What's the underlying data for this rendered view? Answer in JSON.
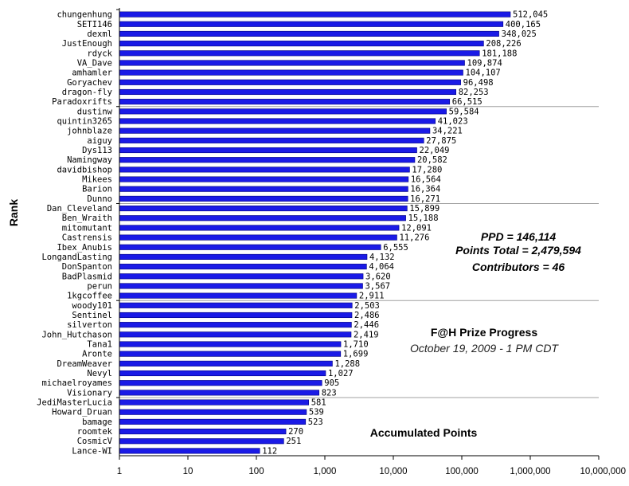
{
  "chart_data": {
    "type": "bar",
    "orientation": "horizontal",
    "x_scale": "log",
    "xlim": [
      1,
      10000000
    ],
    "x_ticks": [
      "1",
      "10",
      "100",
      "1,000",
      "10,000",
      "100,000",
      "1,000,000",
      "10,000,000"
    ],
    "ylabel": "Rank",
    "xlabel": "",
    "bar_color": "#1a1ae6",
    "bar_edge_color": "#000080",
    "group_size": 10,
    "categories": [
      "chungenhung",
      "SETI146",
      "dexml",
      "JustEnough",
      "rdyck",
      "VA_Dave",
      "amhamler",
      "Goryachev",
      "dragon-fly",
      "Paradoxrifts",
      "dustinw",
      "quintin3265",
      "johnblaze",
      "aiguy",
      "Dys113",
      "Namingway",
      "davidbishop",
      "Mikees",
      "Barion",
      "Dunno",
      "Dan_Cleveland",
      "Ben_Wraith",
      "mitomutant",
      "Castrensis",
      "Ibex_Anubis",
      "LongandLasting",
      "DonSpanton",
      "BadPlasmid",
      "perun",
      "1kgcoffee",
      "woody101",
      "Sentinel",
      "silverton",
      "John_Hutchason",
      "Tana1",
      "Aronte",
      "DreamWeaver",
      "Nevyl",
      "michaelroyames",
      "Visionary",
      "JediMasterLucia",
      "Howard_Druan",
      "bamage",
      "roomtek",
      "CosmicV",
      "Lance-WI"
    ],
    "values": [
      512045,
      400165,
      348025,
      208226,
      181188,
      109874,
      104107,
      96498,
      82253,
      66515,
      59584,
      41023,
      34221,
      27875,
      22049,
      20582,
      17280,
      16564,
      16364,
      16271,
      15899,
      15188,
      12091,
      11276,
      6555,
      4132,
      4064,
      3620,
      3567,
      2911,
      2503,
      2486,
      2446,
      2419,
      1710,
      1699,
      1288,
      1027,
      905,
      823,
      581,
      539,
      523,
      270,
      251,
      112
    ],
    "value_labels": [
      "512,045",
      "400,165",
      "348,025",
      "208,226",
      "181,188",
      "109,874",
      "104,107",
      "96,498",
      "82,253",
      "66,515",
      "59,584",
      "41,023",
      "34,221",
      "27,875",
      "22,049",
      "20,582",
      "17,280",
      "16,564",
      "16,364",
      "16,271",
      "15,899",
      "15,188",
      "12,091",
      "11,276",
      "6,555",
      "4,132",
      "4,064",
      "3,620",
      "3,567",
      "2,911",
      "2,503",
      "2,486",
      "2,446",
      "2,419",
      "1,710",
      "1,699",
      "1,288",
      "1,027",
      "905",
      "823",
      "581",
      "539",
      "523",
      "270",
      "251",
      "112"
    ],
    "annotations": {
      "stats": [
        "PPD = 146,114",
        "Points Total = 2,479,594",
        "Contributors = 46"
      ],
      "title": "F@H Prize Progress",
      "subtitle": "October 19, 2009 - 1 PM CDT",
      "caption": "Accumulated Points"
    }
  }
}
